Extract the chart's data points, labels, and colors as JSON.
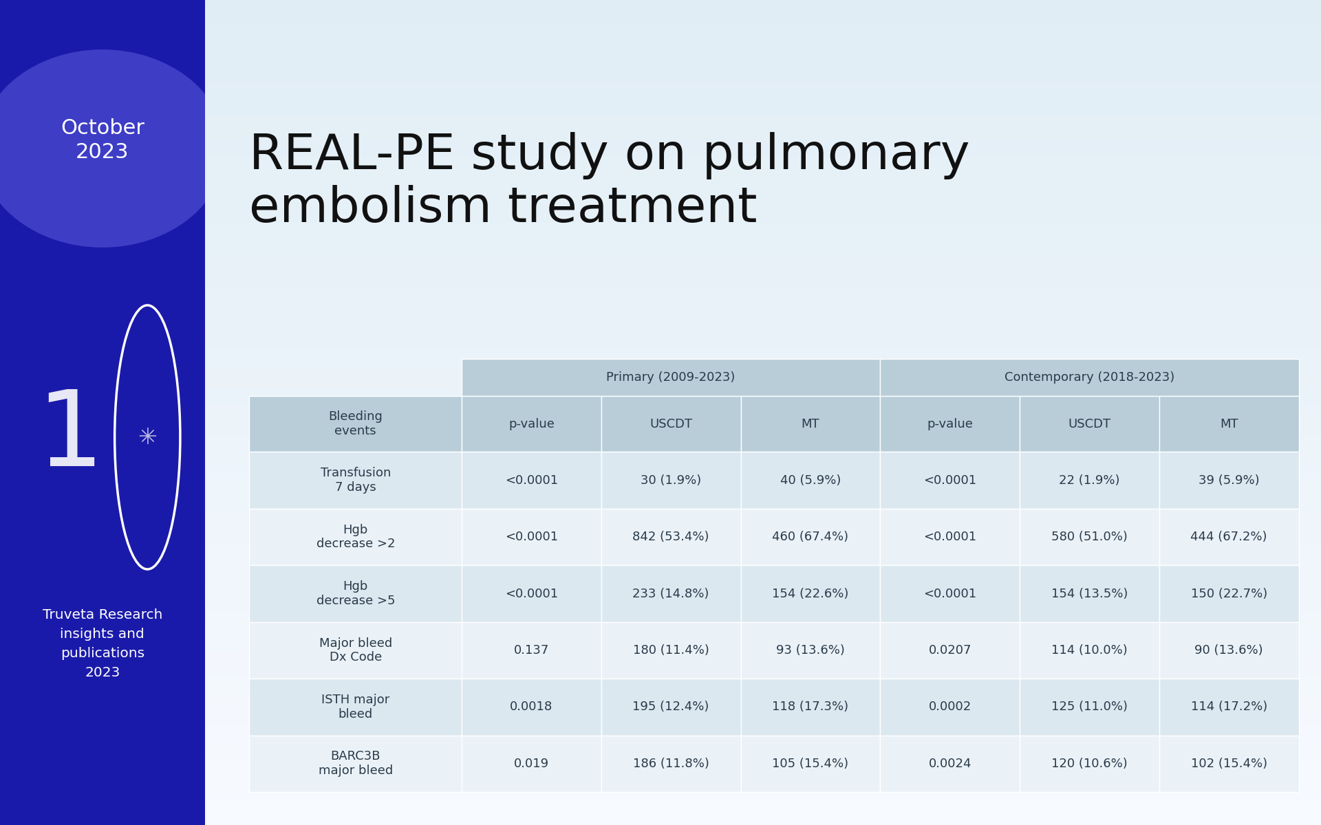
{
  "title": "REAL-PE study on pulmonary\nembolism treatment",
  "left_panel_bg": "#1a1aaa",
  "right_panel_bg_top": "#e8eef5",
  "right_panel_bg_bottom": "#f5f8fb",
  "month": "October\n2023",
  "number": "10",
  "subtitle": "Truveta Research\ninsights and\npublications\n2023",
  "group_headers": [
    "Primary (2009-2023)",
    "Contemporary (2018-2023)"
  ],
  "col_headers": [
    "Bleeding\nevents",
    "p-value",
    "USCDT",
    "MT",
    "p-value",
    "USCDT",
    "MT"
  ],
  "rows": [
    [
      "Transfusion\n7 days",
      "<0.0001",
      "30 (1.9%)",
      "40 (5.9%)",
      "<0.0001",
      "22 (1.9%)",
      "39 (5.9%)"
    ],
    [
      "Hgb\ndecrease >2",
      "<0.0001",
      "842 (53.4%)",
      "460 (67.4%)",
      "<0.0001",
      "580 (51.0%)",
      "444 (67.2%)"
    ],
    [
      "Hgb\ndecrease >5",
      "<0.0001",
      "233 (14.8%)",
      "154 (22.6%)",
      "<0.0001",
      "154 (13.5%)",
      "150 (22.7%)"
    ],
    [
      "Major bleed\nDx Code",
      "0.137",
      "180 (11.4%)",
      "93 (13.6%)",
      "0.0207",
      "114 (10.0%)",
      "90 (13.6%)"
    ],
    [
      "ISTH major\nbleed",
      "0.0018",
      "195 (12.4%)",
      "118 (17.3%)",
      "0.0002",
      "125 (11.0%)",
      "114 (17.2%)"
    ],
    [
      "BARC3B\nmajor bleed",
      "0.019",
      "186 (11.8%)",
      "105 (15.4%)",
      "0.0024",
      "120 (10.6%)",
      "102 (15.4%)"
    ]
  ],
  "table_header_bg": "#b0c4d4",
  "table_subheader_bg": "#b0c4d4",
  "table_row_odd_bg": "#dce8f0",
  "table_row_even_bg": "#eaf2f7",
  "table_text_color": "#2a3a4a",
  "header_text_color": "#2a3a4a",
  "title_color": "#111111",
  "month_text_color": "#ffffff",
  "subtitle_text_color": "#ffffff",
  "circle_color": "#3333bb",
  "circle_outline": "#ffffff"
}
